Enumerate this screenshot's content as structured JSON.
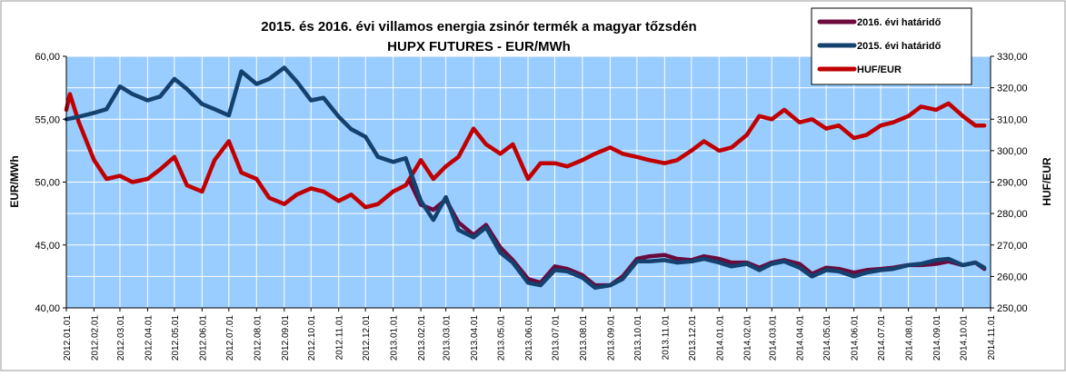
{
  "chart_data": {
    "type": "line",
    "title_line1": "2015. és 2016. évi villamos energia zsinór termék a magyar tőzsdén",
    "title_line2": "HUPX FUTURES - EUR/MWh",
    "ylabel_left": "EUR/MWh",
    "ylabel_right": "HUF/EUR",
    "y_left": {
      "range": [
        40,
        60
      ],
      "ticks": [
        "40,00",
        "45,00",
        "50,00",
        "55,00",
        "60,00"
      ]
    },
    "y_right": {
      "range": [
        250,
        330
      ],
      "ticks": [
        "250,00",
        "260,00",
        "270,00",
        "280,00",
        "290,00",
        "300,00",
        "310,00",
        "320,00",
        "330,00"
      ]
    },
    "x_ticks": [
      "2012.01.01",
      "2012.02.01",
      "2012.03.01",
      "2012.04.01",
      "2012.05.01",
      "2012.06.01",
      "2012.07.01",
      "2012.08.01",
      "2012.09.01",
      "2012.10.01",
      "2012.11.01",
      "2012.12.01",
      "2013.01.01",
      "2013.02.01",
      "2013.03.01",
      "2013.04.01",
      "2013.05.01",
      "2013.06.01",
      "2013.07.01",
      "2013.08.01",
      "2013.09.01",
      "2013.10.01",
      "2013.11.01",
      "2013.12.01",
      "2014.01.01",
      "2014.02.01",
      "2014.03.01",
      "2014.04.01",
      "2014.05.01",
      "2014.06.01",
      "2014.07.01",
      "2014.08.01",
      "2014.09.01",
      "2014.10.01",
      "2014.11.01"
    ],
    "grid": true,
    "legend_position": "top-right",
    "series": [
      {
        "name": "2016. évi határidő",
        "axis": "left",
        "color": "#6b0a3c",
        "x": [
          "2013.01.20",
          "2013.02.01",
          "2013.02.15",
          "2013.03.01",
          "2013.03.15",
          "2013.04.01",
          "2013.04.15",
          "2013.05.01",
          "2013.05.15",
          "2013.06.01",
          "2013.06.15",
          "2013.07.01",
          "2013.07.15",
          "2013.08.01",
          "2013.08.15",
          "2013.09.01",
          "2013.09.15",
          "2013.10.01",
          "2013.10.15",
          "2013.11.01",
          "2013.11.15",
          "2013.12.01",
          "2013.12.15",
          "2014.01.01",
          "2014.01.15",
          "2014.02.01",
          "2014.02.15",
          "2014.03.01",
          "2014.03.15",
          "2014.04.01",
          "2014.04.15",
          "2014.05.01",
          "2014.05.15",
          "2014.06.01",
          "2014.06.15",
          "2014.07.01",
          "2014.07.15",
          "2014.08.01",
          "2014.08.15",
          "2014.09.01",
          "2014.09.15",
          "2014.10.01",
          "2014.10.15",
          "2014.10.25"
        ],
        "values": [
          50.0,
          48.2,
          47.8,
          48.6,
          46.8,
          45.8,
          46.6,
          44.8,
          43.8,
          42.3,
          42.0,
          43.3,
          43.1,
          42.6,
          41.8,
          41.8,
          42.5,
          43.9,
          44.1,
          44.2,
          43.9,
          43.8,
          44.1,
          43.9,
          43.6,
          43.6,
          43.2,
          43.6,
          43.8,
          43.5,
          42.7,
          43.2,
          43.1,
          42.8,
          43.0,
          43.1,
          43.2,
          43.4,
          43.4,
          43.5,
          43.7,
          43.4,
          43.6,
          43.1
        ]
      },
      {
        "name": "2015. évi határidő",
        "axis": "left",
        "color": "#14416e",
        "x": [
          "2012.01.01",
          "2012.01.15",
          "2012.02.01",
          "2012.02.15",
          "2012.03.01",
          "2012.03.15",
          "2012.04.01",
          "2012.04.15",
          "2012.05.01",
          "2012.05.15",
          "2012.06.01",
          "2012.06.15",
          "2012.07.01",
          "2012.07.15",
          "2012.08.01",
          "2012.08.15",
          "2012.09.01",
          "2012.09.15",
          "2012.10.01",
          "2012.10.15",
          "2012.11.01",
          "2012.11.15",
          "2012.12.01",
          "2012.12.15",
          "2013.01.01",
          "2013.01.15",
          "2013.02.01",
          "2013.02.15",
          "2013.03.01",
          "2013.03.15",
          "2013.04.01",
          "2013.04.15",
          "2013.05.01",
          "2013.05.15",
          "2013.06.01",
          "2013.06.15",
          "2013.07.01",
          "2013.07.15",
          "2013.08.01",
          "2013.08.15",
          "2013.09.01",
          "2013.09.15",
          "2013.10.01",
          "2013.10.15",
          "2013.11.01",
          "2013.11.15",
          "2013.12.01",
          "2013.12.15",
          "2014.01.01",
          "2014.01.15",
          "2014.02.01",
          "2014.02.15",
          "2014.03.01",
          "2014.03.15",
          "2014.04.01",
          "2014.04.15",
          "2014.05.01",
          "2014.05.15",
          "2014.06.01",
          "2014.06.15",
          "2014.07.01",
          "2014.07.15",
          "2014.08.01",
          "2014.08.15",
          "2014.09.01",
          "2014.09.15",
          "2014.10.01",
          "2014.10.15",
          "2014.10.25"
        ],
        "values": [
          55.0,
          55.2,
          55.5,
          55.8,
          57.6,
          57.0,
          56.5,
          56.8,
          58.2,
          57.4,
          56.2,
          55.8,
          55.3,
          58.8,
          57.8,
          58.2,
          59.1,
          58.0,
          56.5,
          56.7,
          55.2,
          54.2,
          53.6,
          52.0,
          51.6,
          51.9,
          48.5,
          47.0,
          48.8,
          46.2,
          45.6,
          46.4,
          44.4,
          43.6,
          42.0,
          41.8,
          43.0,
          42.9,
          42.4,
          41.6,
          41.8,
          42.3,
          43.7,
          43.7,
          43.8,
          43.6,
          43.7,
          43.9,
          43.6,
          43.3,
          43.5,
          43.0,
          43.5,
          43.7,
          43.2,
          42.5,
          43.0,
          42.9,
          42.5,
          42.8,
          43.0,
          43.1,
          43.4,
          43.5,
          43.8,
          43.9,
          43.4,
          43.6,
          43.2
        ]
      },
      {
        "name": "HUF/EUR",
        "axis": "right",
        "color": "#c00000",
        "x": [
          "2012.01.01",
          "2012.01.05",
          "2012.01.15",
          "2012.02.01",
          "2012.02.15",
          "2012.03.01",
          "2012.03.15",
          "2012.04.01",
          "2012.04.15",
          "2012.05.01",
          "2012.05.15",
          "2012.06.01",
          "2012.06.15",
          "2012.07.01",
          "2012.07.15",
          "2012.08.01",
          "2012.08.15",
          "2012.09.01",
          "2012.09.15",
          "2012.10.01",
          "2012.10.15",
          "2012.11.01",
          "2012.11.15",
          "2012.12.01",
          "2012.12.15",
          "2013.01.01",
          "2013.01.15",
          "2013.02.01",
          "2013.02.15",
          "2013.03.01",
          "2013.03.15",
          "2013.04.01",
          "2013.04.15",
          "2013.05.01",
          "2013.05.15",
          "2013.06.01",
          "2013.06.15",
          "2013.07.01",
          "2013.07.15",
          "2013.08.01",
          "2013.08.15",
          "2013.09.01",
          "2013.09.15",
          "2013.10.01",
          "2013.10.15",
          "2013.11.01",
          "2013.11.15",
          "2013.12.01",
          "2013.12.15",
          "2014.01.01",
          "2014.01.15",
          "2014.02.01",
          "2014.02.15",
          "2014.03.01",
          "2014.03.15",
          "2014.04.01",
          "2014.04.15",
          "2014.05.01",
          "2014.05.15",
          "2014.06.01",
          "2014.06.15",
          "2014.07.01",
          "2014.07.15",
          "2014.08.01",
          "2014.08.15",
          "2014.09.01",
          "2014.09.15",
          "2014.10.01",
          "2014.10.15",
          "2014.10.25"
        ],
        "values": [
          313.0,
          318.0,
          309.0,
          297.0,
          291.0,
          292.0,
          290.0,
          291.0,
          294.0,
          298.0,
          289.0,
          287.0,
          297.0,
          303.0,
          293.0,
          291.0,
          285.0,
          283.0,
          286.0,
          288.0,
          287.0,
          284.0,
          286.0,
          282.0,
          283.0,
          287.0,
          289.0,
          297.0,
          291.0,
          295.0,
          298.0,
          307.0,
          302.0,
          299.0,
          302.0,
          291.0,
          296.0,
          296.0,
          295.0,
          297.0,
          299.0,
          301.0,
          299.0,
          298.0,
          297.0,
          296.0,
          297.0,
          300.0,
          303.0,
          300.0,
          301.0,
          305.0,
          311.0,
          310.0,
          313.0,
          309.0,
          310.0,
          307.0,
          308.0,
          304.0,
          305.0,
          308.0,
          309.0,
          311.0,
          314.0,
          313.0,
          315.0,
          311.0,
          308.0,
          308.0
        ]
      }
    ]
  }
}
